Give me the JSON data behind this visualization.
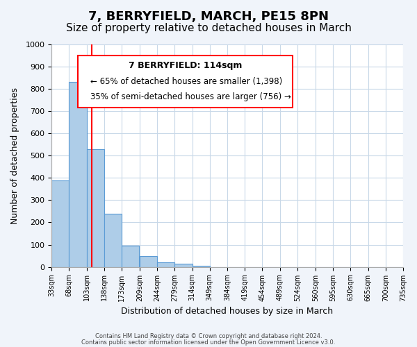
{
  "title": "7, BERRYFIELD, MARCH, PE15 8PN",
  "subtitle": "Size of property relative to detached houses in March",
  "xlabel": "Distribution of detached houses by size in March",
  "ylabel": "Number of detached properties",
  "bar_values": [
    390,
    830,
    530,
    240,
    95,
    50,
    20,
    15,
    5,
    0,
    0,
    0,
    0,
    0,
    0,
    0,
    0,
    0,
    0,
    0
  ],
  "bin_labels": [
    "33sqm",
    "68sqm",
    "103sqm",
    "138sqm",
    "173sqm",
    "209sqm",
    "244sqm",
    "279sqm",
    "314sqm",
    "349sqm",
    "384sqm",
    "419sqm",
    "454sqm",
    "489sqm",
    "524sqm",
    "560sqm",
    "595sqm",
    "630sqm",
    "665sqm",
    "700sqm",
    "735sqm"
  ],
  "bin_edges": [
    33,
    68,
    103,
    138,
    173,
    209,
    244,
    279,
    314,
    349,
    384,
    419,
    454,
    489,
    524,
    560,
    595,
    630,
    665,
    700,
    735
  ],
  "bar_color": "#aecde8",
  "bar_edge_color": "#5b9bd5",
  "red_line_x": 114,
  "ylim": [
    0,
    1000
  ],
  "yticks": [
    0,
    100,
    200,
    300,
    400,
    500,
    600,
    700,
    800,
    900,
    1000
  ],
  "annotation_title": "7 BERRYFIELD: 114sqm",
  "annotation_line1": "← 65% of detached houses are smaller (1,398)",
  "annotation_line2": "35% of semi-detached houses are larger (756) →",
  "footer1": "Contains HM Land Registry data © Crown copyright and database right 2024.",
  "footer2": "Contains public sector information licensed under the Open Government Licence v3.0.",
  "background_color": "#f0f4fa",
  "plot_bg_color": "#ffffff",
  "grid_color": "#c8d8e8",
  "title_fontsize": 13,
  "subtitle_fontsize": 11
}
